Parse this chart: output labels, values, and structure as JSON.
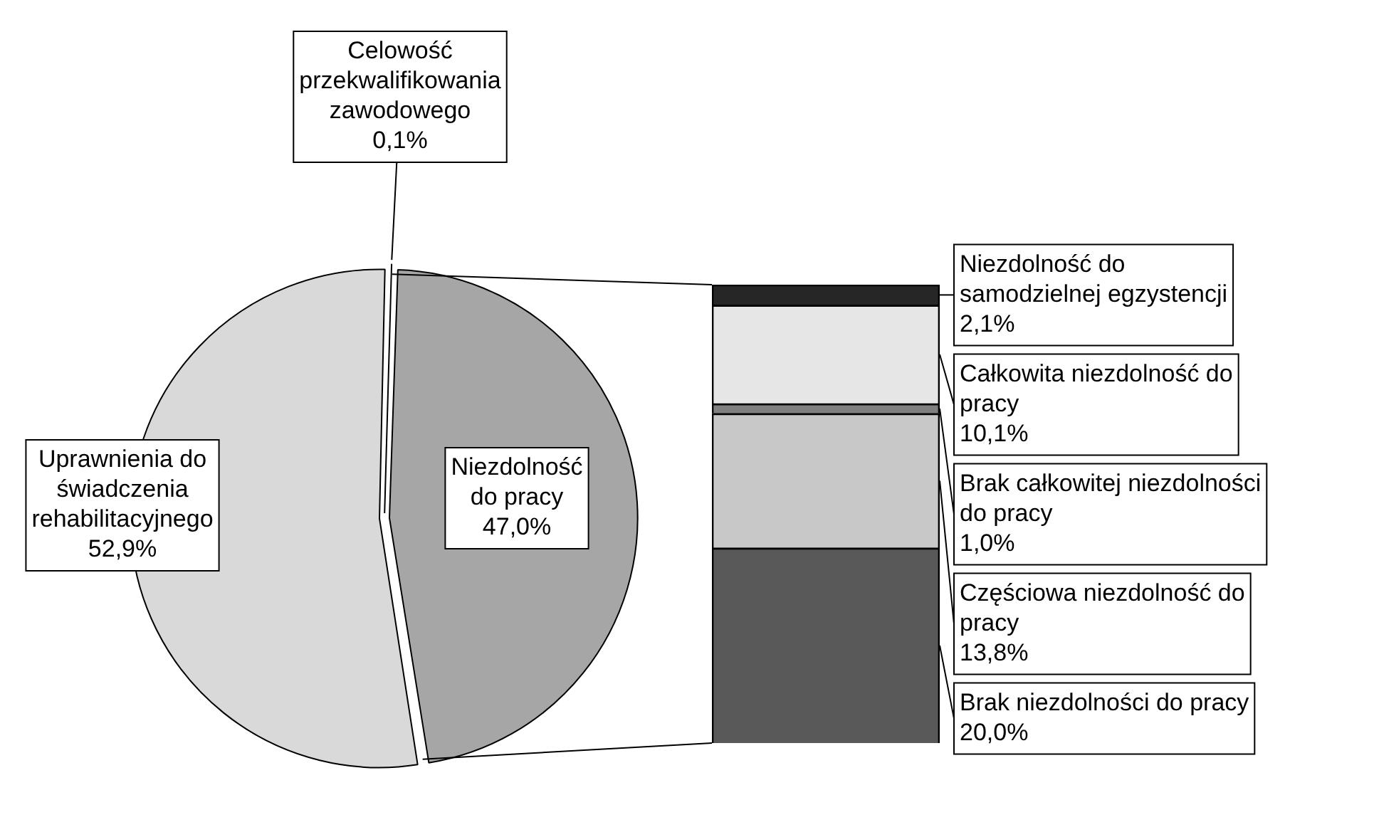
{
  "chart_data": [
    {
      "type": "pie",
      "categories": [
        "Uprawnienia do świadczenia rehabilitacyjnego",
        "Celowość przekwalifikowania zawodowego",
        "Niezdolność do pracy"
      ],
      "values": [
        52.9,
        0.1,
        47.0
      ],
      "colors": [
        "#d9d9d9",
        "#000000",
        "#a6a6a6"
      ],
      "value_labels": [
        "52,9%",
        "0,1%",
        "47,0%"
      ]
    },
    {
      "type": "bar",
      "stacked": true,
      "categories": [
        null
      ],
      "series": [
        {
          "name": "Brak niezdolności do pracy",
          "color": "#595959",
          "values": [
            20.0
          ],
          "value_labels": [
            "20,0%"
          ]
        },
        {
          "name": "Częściowa niezdolność do pracy",
          "color": "#c8c8c8",
          "values": [
            13.8
          ],
          "value_labels": [
            "13,8%"
          ]
        },
        {
          "name": "Brak całkowitej niezdolności do pracy",
          "color": "#7f7f7f",
          "values": [
            1.0
          ],
          "value_labels": [
            "1,0%"
          ]
        },
        {
          "name": "Całkowita niezdolność do pracy",
          "color": "#e6e6e6",
          "values": [
            10.1
          ],
          "value_labels": [
            "10,1%"
          ]
        },
        {
          "name": "Niezdolność do samodzielnej egzystencji",
          "color": "#262626",
          "values": [
            2.1
          ],
          "value_labels": [
            "2,1%"
          ]
        }
      ]
    }
  ]
}
